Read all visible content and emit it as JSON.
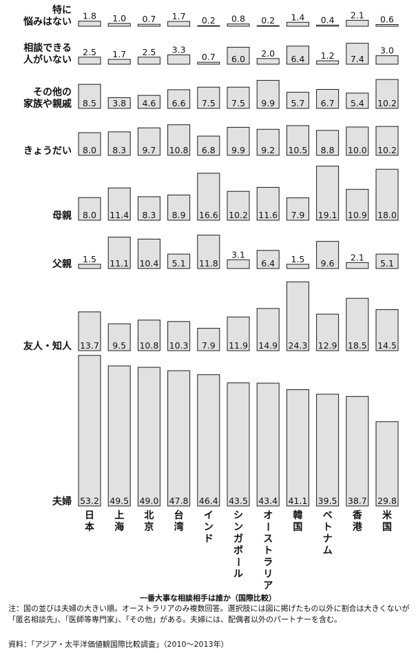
{
  "chart_data": {
    "type": "bar",
    "layout": "small-multiples",
    "title": "一番大事な相談相手は誰か（国際比較）",
    "categories": [
      "日本",
      "上海",
      "北京",
      "台湾",
      "インド",
      "シンガポール",
      "オーストラリア",
      "韓国",
      "ベトナム",
      "香港",
      "米国"
    ],
    "series": [
      {
        "name": "特に悩みはない",
        "label_lines": [
          "特に",
          "悩みはない"
        ],
        "values": [
          1.8,
          1.0,
          0.7,
          1.7,
          0.2,
          0.8,
          0.2,
          1.4,
          0.4,
          2.1,
          0.6
        ]
      },
      {
        "name": "相談できる人がいない",
        "label_lines": [
          "相談できる",
          "人がいない"
        ],
        "values": [
          2.5,
          1.7,
          2.5,
          3.3,
          0.7,
          6.0,
          2.0,
          6.4,
          1.2,
          7.4,
          3.0
        ]
      },
      {
        "name": "その他の家族や親戚",
        "label_lines": [
          "その他の",
          "家族や親戚"
        ],
        "values": [
          8.5,
          3.8,
          4.6,
          6.6,
          7.5,
          7.5,
          9.9,
          5.7,
          6.7,
          5.4,
          10.2
        ]
      },
      {
        "name": "きょうだい",
        "label_lines": [
          "きょうだい"
        ],
        "values": [
          8.0,
          8.3,
          9.7,
          10.8,
          6.8,
          9.9,
          9.2,
          10.5,
          8.8,
          10.0,
          10.2
        ]
      },
      {
        "name": "母親",
        "label_lines": [
          "母親"
        ],
        "values": [
          8.0,
          11.4,
          8.3,
          8.9,
          16.6,
          10.2,
          11.6,
          7.9,
          19.1,
          10.9,
          18.0
        ]
      },
      {
        "name": "父親",
        "label_lines": [
          "父親"
        ],
        "values": [
          1.5,
          11.1,
          10.4,
          5.1,
          11.8,
          3.1,
          6.4,
          1.5,
          9.6,
          2.1,
          5.1
        ]
      },
      {
        "name": "友人・知人",
        "label_lines": [
          "友人・知人"
        ],
        "values": [
          13.7,
          9.5,
          10.8,
          10.3,
          7.9,
          11.9,
          14.9,
          24.3,
          12.9,
          18.5,
          14.5
        ]
      },
      {
        "name": "夫婦",
        "label_lines": [
          "夫婦"
        ],
        "values": [
          53.2,
          49.5,
          49.0,
          47.8,
          46.4,
          43.5,
          43.4,
          41.1,
          39.5,
          38.7,
          29.8
        ]
      }
    ],
    "colors": {
      "bar_fill": "#e1e1e1",
      "bar_stroke": "#1a1a1a"
    }
  },
  "caption": {
    "title": "一番大事な相談相手は誰か（国際比較）",
    "note": "注：国の並びは夫婦の大きい順。オーストラリアのみ複数回答。選択肢には図に掲げたもの以外に割合は大きくないが「匿名相談先」、「医師等専門家」、「その他」がある。夫婦には、配偶者以外のパートナーを含む。",
    "source": "資料：「アジア・太平洋価値観国際比較調査」（2010～2013年）"
  }
}
